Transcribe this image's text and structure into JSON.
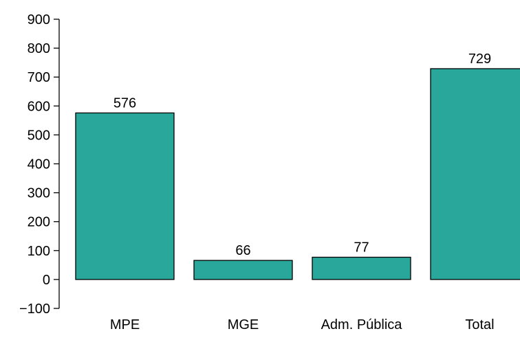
{
  "chart_data": {
    "type": "bar",
    "categories": [
      "MPE",
      "MGE",
      "Adm. Pública",
      "Total"
    ],
    "values": [
      576,
      66,
      77,
      729
    ],
    "data_labels": [
      "576",
      "66",
      "77",
      "729"
    ],
    "title": "",
    "xlabel": "",
    "ylabel": "",
    "ylim": [
      -100,
      900
    ],
    "yticks": [
      -100,
      0,
      100,
      200,
      300,
      400,
      500,
      600,
      700,
      800,
      900
    ],
    "ytick_labels": [
      "−100",
      "0",
      "100",
      "200",
      "300",
      "400",
      "500",
      "600",
      "700",
      "800",
      "900"
    ],
    "grid": false,
    "legend": "none",
    "bar_color": "#2aa79b",
    "bar_edge_color": "#000000"
  }
}
